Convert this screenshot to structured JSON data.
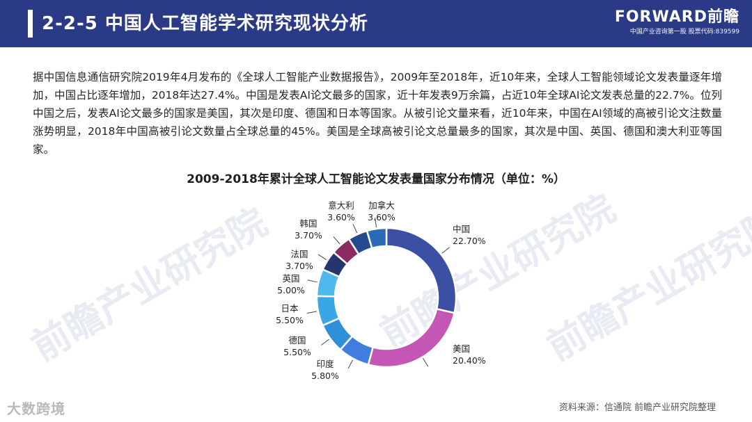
{
  "header": {
    "title": "2-2-5 中国人工智能学术研究现状分析",
    "brand_name": "FORWARD前瞻",
    "brand_tagline": "中国产业咨询第一股 股票代码:839599"
  },
  "intro_text": "据中国信息通信研究院2019年4月发布的《全球人工智能产业数据报告》，2009年至2018年，近10年来，全球人工智能领域论文发表量逐年增加，中国占比逐年增加，2018年达27.4%。中国是发表AI论文最多的国家，近十年发表9万余篇，占近10年全球AI论文发表总量的22.7%。位列中国之后，发表AI论文最多的国家是美国，其次是印度、德国和日本等国家。从被引论文量来看，近10年来，中国在AI领域的高被引论文注数量涨势明显，2018年中国高被引论文数量占全球总量的45%。美国是全球高被引论文总量最多的国家，其次是中国、英国、德国和澳大利亚等国家。",
  "source": "资料来源：信通院 前瞻产业研究院整理",
  "footer_logo": "大数跨境",
  "watermark": "前瞻产业研究院",
  "chart_data": {
    "type": "pie",
    "title": "2009-2018年累计全球人工智能论文发表量国家分布情况（单位：%）",
    "categories": [
      "中国",
      "美国",
      "印度",
      "德国",
      "日本",
      "英国",
      "法国",
      "韩国",
      "意大利",
      "加拿大"
    ],
    "values": [
      22.7,
      20.4,
      5.8,
      5.5,
      5.5,
      5.0,
      3.7,
      3.7,
      3.6,
      3.6
    ],
    "value_labels": [
      "22.70%",
      "20.40%",
      "5.80%",
      "5.50%",
      "5.50%",
      "5.00%",
      "3.70%",
      "3.70%",
      "3.60%",
      "3.60%"
    ],
    "colors": [
      "#3b4fa4",
      "#c457b6",
      "#3f7de0",
      "#2f8fd8",
      "#3aa6e6",
      "#4eb8ec",
      "#27356e",
      "#8c2a62",
      "#244b8f",
      "#2a6ab6"
    ],
    "start_angle": 0,
    "legend": "none"
  }
}
